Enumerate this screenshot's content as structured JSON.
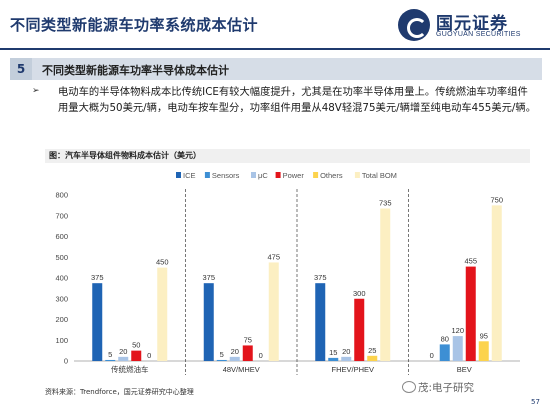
{
  "header": {
    "title": "不同类型新能源车功率系统成本估计"
  },
  "logo": {
    "cn": "国元证券",
    "en": "GUOYUAN SECURITIES"
  },
  "section": {
    "number": "5",
    "title": "不同类型新能源车功率半导体成本估计"
  },
  "body": {
    "bullet": "➢",
    "text": "电动车的半导体物料成本比传统ICE有较大幅度提升，尤其是在功率半导体用量上。传统燃油车功率组件用量大概为50美元/辆，电动车按车型分，功率组件用量从48V轻混75美元/辆增至纯电动车455美元/辆。"
  },
  "figure": {
    "caption": "图：汽车半导体组件物料成本估计（美元）"
  },
  "chart_data": {
    "type": "bar",
    "categories": [
      "传统燃油车",
      "48V/MHEV",
      "FHEV/PHEV",
      "BEV"
    ],
    "series": [
      {
        "name": "ICE",
        "color": "#1f64b4",
        "values": [
          375,
          375,
          375,
          0
        ]
      },
      {
        "name": "Sensors",
        "color": "#3d8fd4",
        "values": [
          5,
          5,
          15,
          80
        ]
      },
      {
        "name": "μC",
        "color": "#a9c4e6",
        "values": [
          20,
          20,
          20,
          120
        ]
      },
      {
        "name": "Power",
        "color": "#e3141b",
        "values": [
          50,
          75,
          300,
          455
        ]
      },
      {
        "name": "Others",
        "color": "#fcd34d",
        "values": [
          0,
          0,
          25,
          95
        ]
      },
      {
        "name": "Total BOM",
        "color": "#fcefc2",
        "values": [
          450,
          475,
          735,
          750
        ]
      }
    ],
    "ylim": [
      0,
      800
    ],
    "yticks": [
      0,
      100,
      200,
      300,
      400,
      500,
      600,
      700,
      800
    ],
    "legend": "top",
    "grid": false
  },
  "footer": {
    "source": "资料来源：Trendforce，国元证券研究中心整理",
    "watermark": "茂:电子研究",
    "page": "57"
  }
}
